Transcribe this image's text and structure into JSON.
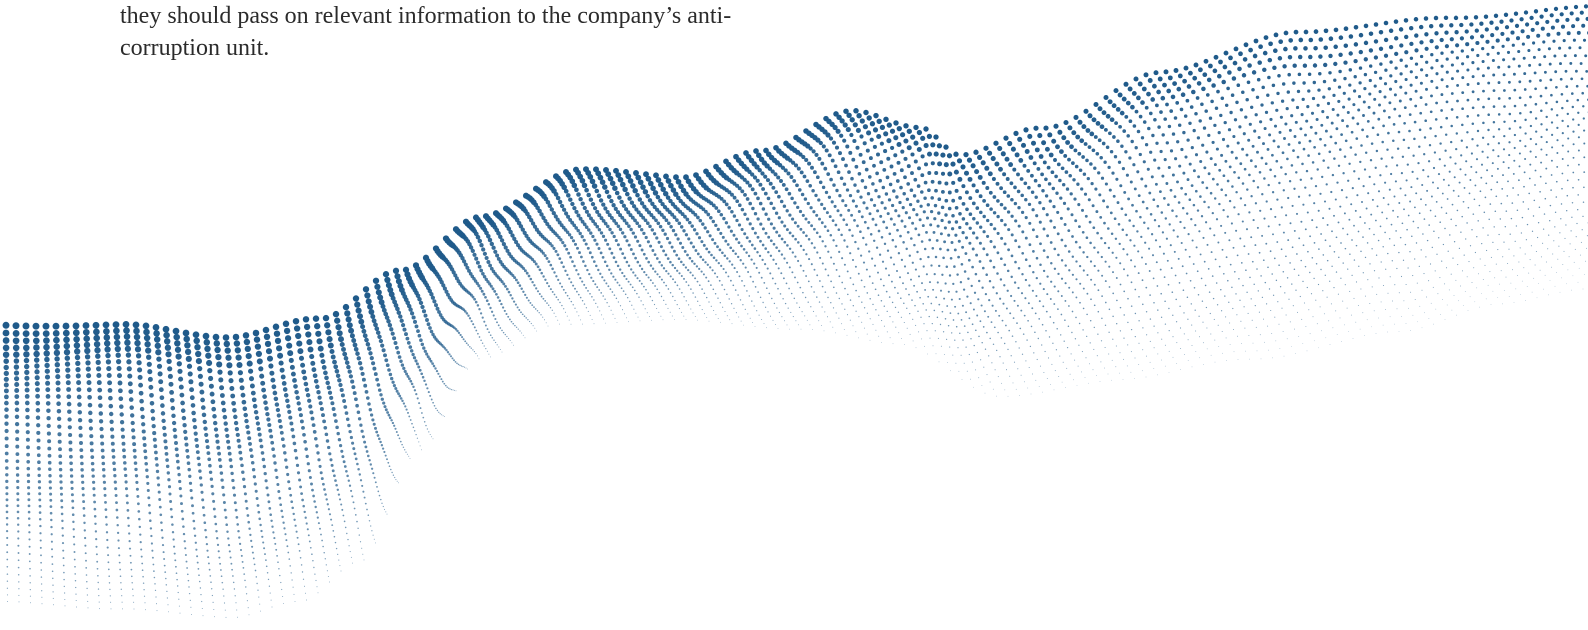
{
  "document": {
    "paragraph_lines": [
      "they should pass on relevant information to the company’s anti-",
      "corruption unit."
    ]
  },
  "decoration": {
    "name": "dotted-wave-graphic",
    "color": "#1f5a8a"
  }
}
